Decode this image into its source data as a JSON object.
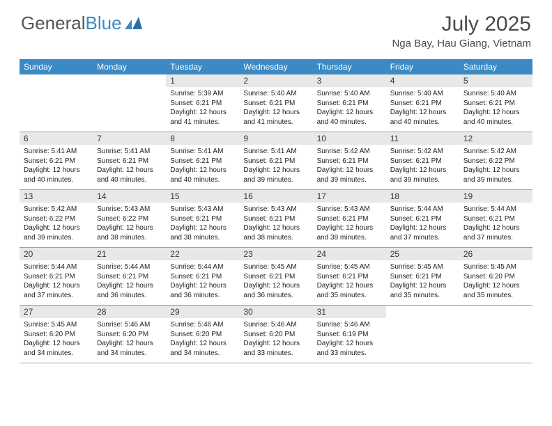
{
  "logo": {
    "part1": "General",
    "part2": "Blue"
  },
  "title": "July 2025",
  "location": "Nga Bay, Hau Giang, Vietnam",
  "colors": {
    "header_bg": "#3b8ac4",
    "header_text": "#ffffff",
    "daynum_bg": "#e8e8e8",
    "row_border": "#7da8c9",
    "body_text": "#222222",
    "title_text": "#4a4a4a"
  },
  "weekdays": [
    "Sunday",
    "Monday",
    "Tuesday",
    "Wednesday",
    "Thursday",
    "Friday",
    "Saturday"
  ],
  "weeks": [
    [
      null,
      null,
      {
        "n": "1",
        "sr": "5:39 AM",
        "ss": "6:21 PM",
        "dl": "12 hours and 41 minutes."
      },
      {
        "n": "2",
        "sr": "5:40 AM",
        "ss": "6:21 PM",
        "dl": "12 hours and 41 minutes."
      },
      {
        "n": "3",
        "sr": "5:40 AM",
        "ss": "6:21 PM",
        "dl": "12 hours and 40 minutes."
      },
      {
        "n": "4",
        "sr": "5:40 AM",
        "ss": "6:21 PM",
        "dl": "12 hours and 40 minutes."
      },
      {
        "n": "5",
        "sr": "5:40 AM",
        "ss": "6:21 PM",
        "dl": "12 hours and 40 minutes."
      }
    ],
    [
      {
        "n": "6",
        "sr": "5:41 AM",
        "ss": "6:21 PM",
        "dl": "12 hours and 40 minutes."
      },
      {
        "n": "7",
        "sr": "5:41 AM",
        "ss": "6:21 PM",
        "dl": "12 hours and 40 minutes."
      },
      {
        "n": "8",
        "sr": "5:41 AM",
        "ss": "6:21 PM",
        "dl": "12 hours and 40 minutes."
      },
      {
        "n": "9",
        "sr": "5:41 AM",
        "ss": "6:21 PM",
        "dl": "12 hours and 39 minutes."
      },
      {
        "n": "10",
        "sr": "5:42 AM",
        "ss": "6:21 PM",
        "dl": "12 hours and 39 minutes."
      },
      {
        "n": "11",
        "sr": "5:42 AM",
        "ss": "6:21 PM",
        "dl": "12 hours and 39 minutes."
      },
      {
        "n": "12",
        "sr": "5:42 AM",
        "ss": "6:22 PM",
        "dl": "12 hours and 39 minutes."
      }
    ],
    [
      {
        "n": "13",
        "sr": "5:42 AM",
        "ss": "6:22 PM",
        "dl": "12 hours and 39 minutes."
      },
      {
        "n": "14",
        "sr": "5:43 AM",
        "ss": "6:22 PM",
        "dl": "12 hours and 38 minutes."
      },
      {
        "n": "15",
        "sr": "5:43 AM",
        "ss": "6:21 PM",
        "dl": "12 hours and 38 minutes."
      },
      {
        "n": "16",
        "sr": "5:43 AM",
        "ss": "6:21 PM",
        "dl": "12 hours and 38 minutes."
      },
      {
        "n": "17",
        "sr": "5:43 AM",
        "ss": "6:21 PM",
        "dl": "12 hours and 38 minutes."
      },
      {
        "n": "18",
        "sr": "5:44 AM",
        "ss": "6:21 PM",
        "dl": "12 hours and 37 minutes."
      },
      {
        "n": "19",
        "sr": "5:44 AM",
        "ss": "6:21 PM",
        "dl": "12 hours and 37 minutes."
      }
    ],
    [
      {
        "n": "20",
        "sr": "5:44 AM",
        "ss": "6:21 PM",
        "dl": "12 hours and 37 minutes."
      },
      {
        "n": "21",
        "sr": "5:44 AM",
        "ss": "6:21 PM",
        "dl": "12 hours and 36 minutes."
      },
      {
        "n": "22",
        "sr": "5:44 AM",
        "ss": "6:21 PM",
        "dl": "12 hours and 36 minutes."
      },
      {
        "n": "23",
        "sr": "5:45 AM",
        "ss": "6:21 PM",
        "dl": "12 hours and 36 minutes."
      },
      {
        "n": "24",
        "sr": "5:45 AM",
        "ss": "6:21 PM",
        "dl": "12 hours and 35 minutes."
      },
      {
        "n": "25",
        "sr": "5:45 AM",
        "ss": "6:21 PM",
        "dl": "12 hours and 35 minutes."
      },
      {
        "n": "26",
        "sr": "5:45 AM",
        "ss": "6:20 PM",
        "dl": "12 hours and 35 minutes."
      }
    ],
    [
      {
        "n": "27",
        "sr": "5:45 AM",
        "ss": "6:20 PM",
        "dl": "12 hours and 34 minutes."
      },
      {
        "n": "28",
        "sr": "5:46 AM",
        "ss": "6:20 PM",
        "dl": "12 hours and 34 minutes."
      },
      {
        "n": "29",
        "sr": "5:46 AM",
        "ss": "6:20 PM",
        "dl": "12 hours and 34 minutes."
      },
      {
        "n": "30",
        "sr": "5:46 AM",
        "ss": "6:20 PM",
        "dl": "12 hours and 33 minutes."
      },
      {
        "n": "31",
        "sr": "5:46 AM",
        "ss": "6:19 PM",
        "dl": "12 hours and 33 minutes."
      },
      null,
      null
    ]
  ],
  "labels": {
    "sunrise": "Sunrise:",
    "sunset": "Sunset:",
    "daylight": "Daylight:"
  }
}
